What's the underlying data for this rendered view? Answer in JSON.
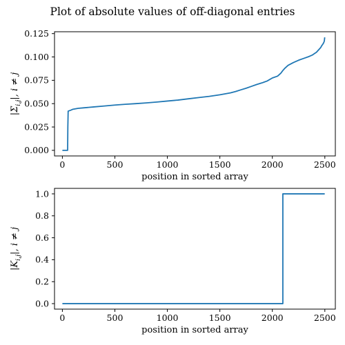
{
  "figure": {
    "suptitle": "Plot of absolute values of off-diagonal entries",
    "line_color": "#1f77b4"
  },
  "chart_data": [
    {
      "type": "line",
      "title": "",
      "xlabel": "position in sorted array",
      "ylabel": "|Σ_{i,j}|, i ≠ j",
      "xlim": [
        -75,
        2600
      ],
      "ylim": [
        -0.006,
        0.127
      ],
      "xticks": [
        0,
        500,
        1000,
        1500,
        2000,
        2500
      ],
      "xtick_labels": [
        "0",
        "500",
        "1000",
        "1500",
        "2000",
        "2500"
      ],
      "yticks": [
        0.0,
        0.025,
        0.05,
        0.075,
        0.1,
        0.125
      ],
      "ytick_labels": [
        "0.000",
        "0.025",
        "0.050",
        "0.075",
        "0.100",
        "0.125"
      ],
      "grid": false,
      "series": [
        {
          "color": "#1f77b4",
          "x": [
            0,
            50,
            52,
            55,
            80,
            100,
            150,
            200,
            300,
            400,
            500,
            600,
            700,
            800,
            900,
            1000,
            1100,
            1200,
            1300,
            1400,
            1500,
            1550,
            1600,
            1650,
            1700,
            1750,
            1800,
            1850,
            1900,
            1950,
            2000,
            2050,
            2080,
            2100,
            2120,
            2150,
            2200,
            2250,
            2300,
            2350,
            2380,
            2400,
            2420,
            2440,
            2460,
            2470,
            2480,
            2490,
            2495,
            2499
          ],
          "y": [
            0.0,
            0.0,
            0.025,
            0.042,
            0.043,
            0.044,
            0.045,
            0.0455,
            0.0465,
            0.0475,
            0.0485,
            0.0493,
            0.05,
            0.0508,
            0.0517,
            0.0528,
            0.0538,
            0.0552,
            0.0565,
            0.0578,
            0.0595,
            0.0605,
            0.0615,
            0.063,
            0.0648,
            0.0665,
            0.0685,
            0.0705,
            0.0722,
            0.0742,
            0.0775,
            0.0795,
            0.0825,
            0.0855,
            0.088,
            0.091,
            0.094,
            0.0965,
            0.0985,
            0.1005,
            0.102,
            0.1035,
            0.105,
            0.1075,
            0.11,
            0.112,
            0.1135,
            0.1155,
            0.117,
            0.121
          ]
        }
      ]
    },
    {
      "type": "line",
      "title": "",
      "xlabel": "position in sorted array",
      "ylabel": "|K_{i,j}|, i ≠ j",
      "xlim": [
        -75,
        2600
      ],
      "ylim": [
        -0.05,
        1.05
      ],
      "xticks": [
        0,
        500,
        1000,
        1500,
        2000,
        2500
      ],
      "xtick_labels": [
        "0",
        "500",
        "1000",
        "1500",
        "2000",
        "2500"
      ],
      "yticks": [
        0.0,
        0.2,
        0.4,
        0.6,
        0.8,
        1.0
      ],
      "ytick_labels": [
        "0.0",
        "0.2",
        "0.4",
        "0.6",
        "0.8",
        "1.0"
      ],
      "grid": false,
      "series": [
        {
          "color": "#1f77b4",
          "x": [
            0,
            2100,
            2100,
            2499
          ],
          "y": [
            0.0,
            0.0,
            1.0,
            1.0
          ]
        }
      ]
    }
  ]
}
